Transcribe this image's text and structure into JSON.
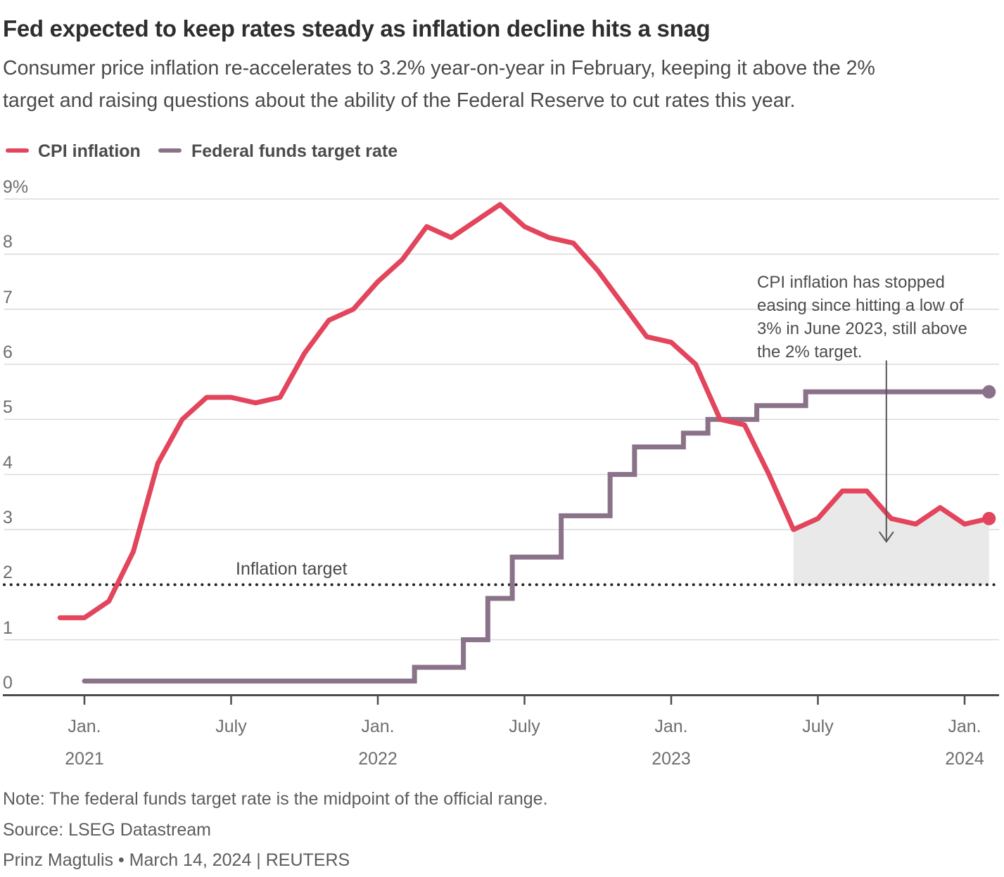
{
  "header": {
    "title": "Fed expected to keep rates steady as inflation decline hits a snag",
    "subtitle": "Consumer price inflation re-accelerates to 3.2% year-on-year in February, keeping it above the 2%\ntarget and raising questions about the ability of the Federal Reserve to cut rates this year."
  },
  "legend": [
    {
      "label": "CPI inflation",
      "color": "#e2455c"
    },
    {
      "label": "Federal funds target rate",
      "color": "#8a7289"
    }
  ],
  "chart_data": {
    "type": "line",
    "title": "Fed expected to keep rates steady as inflation decline hits a snag",
    "xlabel": "",
    "ylabel": "",
    "ylim": [
      0,
      9
    ],
    "grid": "horizontal",
    "legend_position": "top-left",
    "y_tick_labels": [
      "9%",
      "8",
      "7",
      "6",
      "5",
      "4",
      "3",
      "2",
      "1",
      "0"
    ],
    "y_tick_values": [
      9,
      8,
      7,
      6,
      5,
      4,
      3,
      2,
      1,
      0
    ],
    "x_tick_labels": [
      "Jan.\n2021",
      "July",
      "Jan.\n2022",
      "July",
      "Jan.\n2023",
      "July",
      "Jan.\n2024"
    ],
    "x_tick_months": [
      0,
      6,
      12,
      18,
      24,
      30,
      36
    ],
    "series": [
      {
        "name": "CPI inflation",
        "color": "#e2455c",
        "style": "linear",
        "end_dot": true,
        "start_month": -1,
        "months": [
          "Dec 2020",
          "Jan 2021",
          "Feb 2021",
          "Mar 2021",
          "Apr 2021",
          "May 2021",
          "Jun 2021",
          "Jul 2021",
          "Aug 2021",
          "Sep 2021",
          "Oct 2021",
          "Nov 2021",
          "Dec 2021",
          "Jan 2022",
          "Feb 2022",
          "Mar 2022",
          "Apr 2022",
          "May 2022",
          "Jun 2022",
          "Jul 2022",
          "Aug 2022",
          "Sep 2022",
          "Oct 2022",
          "Nov 2022",
          "Dec 2022",
          "Jan 2023",
          "Feb 2023",
          "Mar 2023",
          "Apr 2023",
          "May 2023",
          "Jun 2023",
          "Jul 2023",
          "Aug 2023",
          "Sep 2023",
          "Oct 2023",
          "Nov 2023",
          "Dec 2023",
          "Jan 2024",
          "Feb 2024"
        ],
        "values": [
          1.4,
          1.4,
          1.7,
          2.6,
          4.2,
          5.0,
          5.4,
          5.4,
          5.3,
          5.4,
          6.2,
          6.8,
          7.0,
          7.5,
          7.9,
          8.5,
          8.3,
          8.6,
          8.9,
          8.5,
          8.3,
          8.2,
          7.7,
          7.1,
          6.5,
          6.4,
          6.0,
          5.0,
          4.9,
          4.0,
          3.0,
          3.2,
          3.7,
          3.7,
          3.2,
          3.1,
          3.4,
          3.1,
          3.2
        ]
      },
      {
        "name": "Federal funds target rate",
        "color": "#8a7289",
        "style": "step",
        "end_dot": true,
        "start_month": 0,
        "months": [
          "Jan 2021",
          "Feb 2021",
          "Mar 2021",
          "Apr 2021",
          "May 2021",
          "Jun 2021",
          "Jul 2021",
          "Aug 2021",
          "Sep 2021",
          "Oct 2021",
          "Nov 2021",
          "Dec 2021",
          "Jan 2022",
          "Feb 2022",
          "Mar 2022",
          "Apr 2022",
          "May 2022",
          "Jun 2022",
          "Jul 2022",
          "Aug 2022",
          "Sep 2022",
          "Oct 2022",
          "Nov 2022",
          "Dec 2022",
          "Jan 2023",
          "Feb 2023",
          "Mar 2023",
          "Apr 2023",
          "May 2023",
          "Jun 2023",
          "Jul 2023",
          "Aug 2023",
          "Sep 2023",
          "Oct 2023",
          "Nov 2023",
          "Dec 2023",
          "Jan 2024",
          "Feb 2024"
        ],
        "values": [
          0.25,
          0.25,
          0.25,
          0.25,
          0.25,
          0.25,
          0.25,
          0.25,
          0.25,
          0.25,
          0.25,
          0.25,
          0.25,
          0.25,
          0.5,
          0.5,
          1.0,
          1.75,
          2.5,
          2.5,
          3.25,
          3.25,
          4.0,
          4.5,
          4.5,
          4.75,
          5.0,
          5.0,
          5.25,
          5.25,
          5.5,
          5.5,
          5.5,
          5.5,
          5.5,
          5.5,
          5.5,
          5.5
        ]
      }
    ],
    "target_line": {
      "label": "Inflation target",
      "value": 2,
      "style": "dotted",
      "color": "#232323"
    },
    "shaded_region": {
      "from_month": 29,
      "to_month": 37,
      "series": "CPI inflation",
      "lower_value": 2,
      "color": "#e9e9e9"
    },
    "annotation": {
      "text": "CPI inflation has stopped\neasing since hitting a low of\n3% in June 2023, still above\nthe 2% target.",
      "arrow": {
        "month": 32.8,
        "from_value": 6.07,
        "to_value": 2.78
      }
    }
  },
  "footer": {
    "note": "Note: The federal funds target rate is the midpoint of the official range.",
    "source": "Source: LSEG Datastream",
    "byline": "Prinz Magtulis • March 14, 2024 | REUTERS"
  }
}
